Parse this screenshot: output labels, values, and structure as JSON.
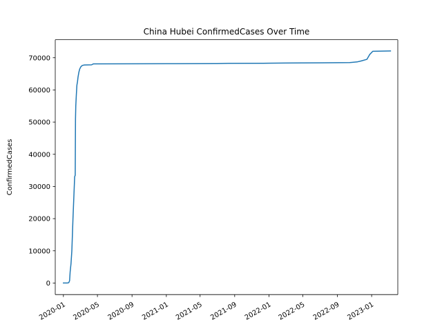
{
  "chart_data": {
    "type": "line",
    "title": "China Hubei ConfirmedCases Over Time",
    "xlabel": "",
    "ylabel": "ConfirmedCases",
    "x_axis": "date",
    "x_ticks": [
      "2020-01",
      "2020-05",
      "2020-09",
      "2021-01",
      "2021-05",
      "2021-09",
      "2022-01",
      "2022-05",
      "2022-09",
      "2023-01"
    ],
    "y_ticks": [
      0,
      10000,
      20000,
      30000,
      40000,
      50000,
      60000,
      70000
    ],
    "xlim": [
      "2019-12-03",
      "2023-04-04"
    ],
    "ylim": [
      -3600,
      75600
    ],
    "grid": false,
    "legend": "none",
    "series": [
      {
        "color": "#1f77b4",
        "points": [
          [
            "2020-01-01",
            0
          ],
          [
            "2020-01-15",
            0
          ],
          [
            "2020-01-20",
            100
          ],
          [
            "2020-01-23",
            700
          ],
          [
            "2020-01-25",
            3500
          ],
          [
            "2020-01-28",
            6000
          ],
          [
            "2020-01-31",
            10000
          ],
          [
            "2020-02-04",
            20000
          ],
          [
            "2020-02-10",
            33000
          ],
          [
            "2020-02-12",
            33500
          ],
          [
            "2020-02-13",
            51000
          ],
          [
            "2020-02-14",
            55000
          ],
          [
            "2020-02-16",
            58500
          ],
          [
            "2020-02-18",
            61500
          ],
          [
            "2020-02-20",
            62500
          ],
          [
            "2020-02-22",
            64000
          ],
          [
            "2020-02-25",
            65500
          ],
          [
            "2020-02-28",
            66500
          ],
          [
            "2020-03-03",
            67200
          ],
          [
            "2020-03-08",
            67600
          ],
          [
            "2020-03-15",
            67750
          ],
          [
            "2020-04-10",
            67800
          ],
          [
            "2020-04-17",
            68100
          ],
          [
            "2020-12-31",
            68140
          ],
          [
            "2021-06-30",
            68180
          ],
          [
            "2021-08-10",
            68260
          ],
          [
            "2021-12-31",
            68300
          ],
          [
            "2022-03-01",
            68350
          ],
          [
            "2022-06-30",
            68420
          ],
          [
            "2022-10-15",
            68500
          ],
          [
            "2022-11-10",
            68700
          ],
          [
            "2022-11-25",
            69000
          ],
          [
            "2022-12-15",
            69500
          ],
          [
            "2022-12-25",
            71000
          ],
          [
            "2023-01-05",
            72000
          ],
          [
            "2023-03-09",
            72100
          ]
        ]
      }
    ]
  }
}
